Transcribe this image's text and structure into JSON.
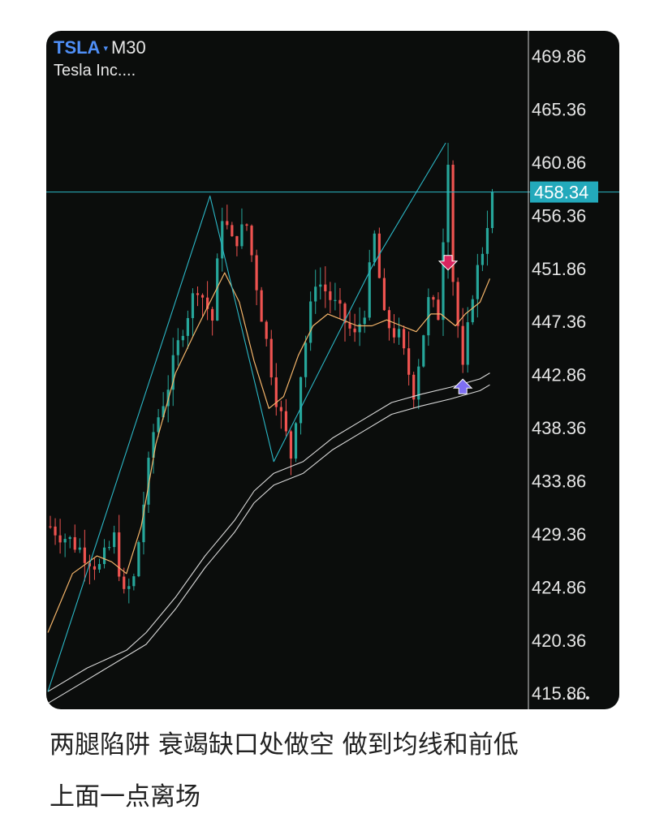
{
  "header": {
    "symbol": "TSLA",
    "caret": "▾",
    "timeframe": "M30",
    "name": "Tesla Inc...."
  },
  "price_tag": "458.34",
  "more_icon": "•••",
  "caption": {
    "line1": "两腿陷阱 衰竭缺口处做空 做到均线和前低",
    "line2": "上面一点离场"
  },
  "colors": {
    "up": "#26a69a",
    "down": "#ef5350",
    "ma_fast": "#f5b56a",
    "ma_slow": "#d9d9d9",
    "trend": "#2bb7c6",
    "sell_arrow": "#d8245f",
    "buy_arrow": "#7e6ff2",
    "price_tag": "#23a9bb"
  },
  "chart_data": {
    "type": "candlestick",
    "symbol": "TSLA",
    "timeframe": "M30",
    "y_ticks": [
      469.86,
      465.36,
      460.86,
      456.36,
      451.86,
      447.36,
      442.86,
      438.36,
      433.86,
      429.36,
      424.86,
      420.36,
      415.86
    ],
    "ylim": [
      414.5,
      472.0
    ],
    "last_price": 458.34,
    "bars": 65,
    "path_keypoints": [
      [
        0,
        430.0
      ],
      [
        5,
        428.5
      ],
      [
        10,
        426.5
      ],
      [
        13,
        429.0
      ],
      [
        15,
        424.0
      ],
      [
        17,
        425.5
      ],
      [
        19,
        432.0
      ],
      [
        21,
        438.0
      ],
      [
        24,
        442.0
      ],
      [
        27,
        447.0
      ],
      [
        30,
        450.5
      ],
      [
        33,
        447.5
      ],
      [
        35,
        456.5
      ],
      [
        37,
        454.0
      ],
      [
        40,
        455.5
      ],
      [
        43,
        448.0
      ],
      [
        46,
        441.0
      ],
      [
        49,
        436.0
      ],
      [
        51,
        443.0
      ],
      [
        54,
        451.0
      ],
      [
        56,
        450.0
      ],
      [
        59,
        448.0
      ],
      [
        62,
        446.0
      ],
      [
        64,
        448.5
      ],
      [
        66,
        454.5
      ],
      [
        68,
        447.5
      ],
      [
        71,
        446.0
      ],
      [
        74,
        441.5
      ],
      [
        77,
        449.0
      ],
      [
        79,
        448.0
      ],
      [
        81,
        461.5
      ],
      [
        82,
        451.0
      ],
      [
        84,
        443.0
      ],
      [
        86,
        450.0
      ],
      [
        88,
        453.5
      ],
      [
        90,
        458.3
      ]
    ],
    "lines": {
      "trendline": [
        [
          0,
          416.0
        ],
        [
          33,
          458.0
        ],
        [
          46,
          435.5
        ],
        [
          66,
          452.0
        ],
        [
          81,
          462.5
        ]
      ],
      "horizontal_level": 458.34,
      "ma_fast": [
        [
          0,
          421.0
        ],
        [
          5,
          426.0
        ],
        [
          10,
          427.5
        ],
        [
          13,
          427.0
        ],
        [
          16,
          426.0
        ],
        [
          19,
          430.0
        ],
        [
          22,
          437.0
        ],
        [
          26,
          443.0
        ],
        [
          30,
          446.5
        ],
        [
          33,
          449.0
        ],
        [
          36,
          451.5
        ],
        [
          39,
          449.0
        ],
        [
          42,
          444.0
        ],
        [
          45,
          440.0
        ],
        [
          48,
          441.0
        ],
        [
          51,
          444.5
        ],
        [
          54,
          447.0
        ],
        [
          57,
          448.0
        ],
        [
          60,
          447.5
        ],
        [
          63,
          447.0
        ],
        [
          66,
          447.0
        ],
        [
          69,
          447.5
        ],
        [
          72,
          447.0
        ],
        [
          75,
          446.5
        ],
        [
          78,
          448.0
        ],
        [
          80,
          448.0
        ],
        [
          83,
          447.0
        ],
        [
          85,
          448.0
        ],
        [
          88,
          449.0
        ],
        [
          90,
          451.0
        ]
      ],
      "ma_slow_a": [
        [
          0,
          416.0
        ],
        [
          8,
          418.0
        ],
        [
          16,
          419.5
        ],
        [
          20,
          421.0
        ],
        [
          26,
          424.0
        ],
        [
          32,
          427.5
        ],
        [
          38,
          430.5
        ],
        [
          42,
          433.0
        ],
        [
          46,
          434.5
        ],
        [
          52,
          435.5
        ],
        [
          58,
          437.5
        ],
        [
          64,
          439.0
        ],
        [
          70,
          440.5
        ],
        [
          76,
          441.2
        ],
        [
          82,
          441.8
        ],
        [
          88,
          442.5
        ],
        [
          90,
          443.0
        ]
      ],
      "ma_slow_b": [
        [
          0,
          415.0
        ],
        [
          8,
          417.0
        ],
        [
          16,
          419.0
        ],
        [
          20,
          420.0
        ],
        [
          26,
          423.0
        ],
        [
          32,
          426.5
        ],
        [
          38,
          429.5
        ],
        [
          42,
          432.0
        ],
        [
          46,
          433.5
        ],
        [
          52,
          434.5
        ],
        [
          58,
          436.5
        ],
        [
          64,
          438.0
        ],
        [
          70,
          439.5
        ],
        [
          76,
          440.2
        ],
        [
          82,
          440.8
        ],
        [
          88,
          441.5
        ],
        [
          90,
          442.0
        ]
      ]
    },
    "markers": [
      {
        "type": "sell-arrow",
        "x": 81,
        "price": 452.0
      },
      {
        "type": "buy-arrow",
        "x": 84,
        "price": 442.2
      }
    ],
    "grid": false
  }
}
